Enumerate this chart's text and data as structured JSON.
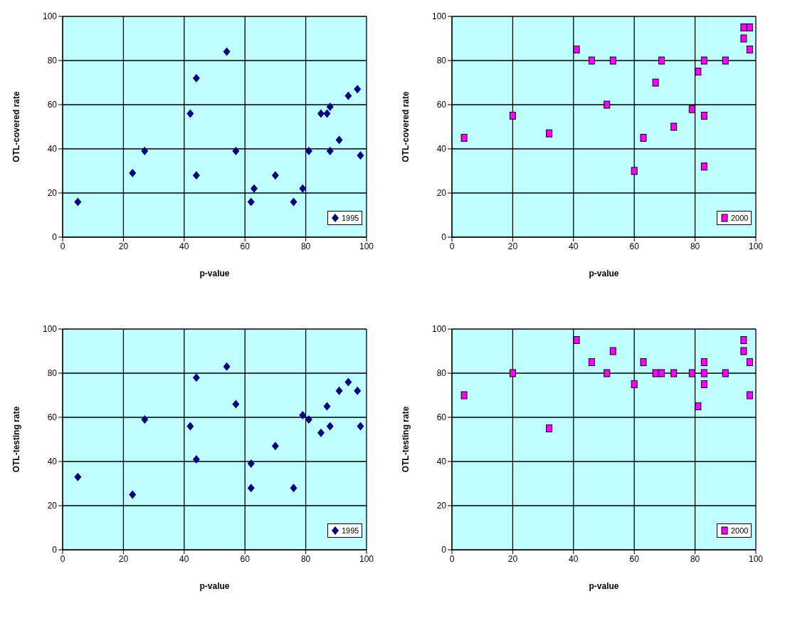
{
  "chart_data": [
    {
      "type": "scatter",
      "xlabel": "p-value",
      "ylabel": "OTL-covered rate",
      "xlim": [
        0,
        100
      ],
      "ylim": [
        0,
        100
      ],
      "xticks": [
        0,
        20,
        40,
        60,
        80,
        100
      ],
      "yticks": [
        0,
        20,
        40,
        60,
        80,
        100
      ],
      "grid": true,
      "legend": "bottom right",
      "marker": "diamond",
      "series": [
        {
          "name": "1995",
          "color": "#000080",
          "x": [
            5,
            23,
            27,
            42,
            44,
            44,
            54,
            57,
            62,
            63,
            70,
            76,
            79,
            81,
            85,
            87,
            88,
            88,
            91,
            94,
            97,
            98
          ],
          "values": [
            16,
            29,
            39,
            56,
            72,
            28,
            84,
            39,
            16,
            22,
            28,
            16,
            22,
            39,
            56,
            56,
            59,
            39,
            44,
            64,
            67,
            37
          ]
        }
      ]
    },
    {
      "type": "scatter",
      "xlabel": "p-value",
      "ylabel": "OTL-covered rate",
      "xlim": [
        0,
        100
      ],
      "ylim": [
        0,
        100
      ],
      "xticks": [
        0,
        20,
        40,
        60,
        80,
        100
      ],
      "yticks": [
        0,
        20,
        40,
        60,
        80,
        100
      ],
      "grid": true,
      "legend": "bottom right",
      "marker": "square",
      "series": [
        {
          "name": "2000",
          "color": "#ff00ff",
          "x": [
            4,
            20,
            32,
            41,
            46,
            53,
            51,
            60,
            63,
            67,
            69,
            73,
            79,
            81,
            83,
            83,
            83,
            90,
            96,
            98,
            96,
            98
          ],
          "values": [
            45,
            55,
            47,
            85,
            80,
            80,
            60,
            30,
            45,
            70,
            80,
            50,
            58,
            75,
            80,
            55,
            32,
            80,
            95,
            95,
            90,
            85
          ]
        }
      ]
    },
    {
      "type": "scatter",
      "xlabel": "p-value",
      "ylabel": "OTL-testing rate",
      "xlim": [
        0,
        100
      ],
      "ylim": [
        0,
        100
      ],
      "xticks": [
        0,
        20,
        40,
        60,
        80,
        100
      ],
      "yticks": [
        0,
        20,
        40,
        60,
        80,
        100
      ],
      "grid": true,
      "legend": "bottom right",
      "marker": "diamond",
      "series": [
        {
          "name": "1995",
          "color": "#000080",
          "x": [
            5,
            23,
            27,
            42,
            44,
            44,
            54,
            57,
            62,
            62,
            70,
            76,
            79,
            81,
            85,
            87,
            88,
            91,
            94,
            97,
            98
          ],
          "values": [
            33,
            25,
            59,
            56,
            78,
            41,
            83,
            66,
            39,
            28,
            47,
            28,
            61,
            59,
            53,
            65,
            56,
            72,
            76,
            72,
            56
          ]
        }
      ]
    },
    {
      "type": "scatter",
      "xlabel": "p-value",
      "ylabel": "OTL-testing rate",
      "xlim": [
        0,
        100
      ],
      "ylim": [
        0,
        100
      ],
      "xticks": [
        0,
        20,
        40,
        60,
        80,
        100
      ],
      "yticks": [
        0,
        20,
        40,
        60,
        80,
        100
      ],
      "grid": true,
      "legend": "bottom right",
      "marker": "square",
      "series": [
        {
          "name": "2000",
          "color": "#ff00ff",
          "x": [
            4,
            20,
            32,
            41,
            46,
            51,
            53,
            60,
            63,
            67,
            69,
            73,
            79,
            81,
            83,
            83,
            83,
            90,
            96,
            96,
            98,
            98
          ],
          "values": [
            70,
            80,
            55,
            95,
            85,
            80,
            90,
            75,
            85,
            80,
            80,
            80,
            80,
            65,
            85,
            80,
            75,
            80,
            95,
            90,
            85,
            70
          ]
        }
      ]
    }
  ]
}
